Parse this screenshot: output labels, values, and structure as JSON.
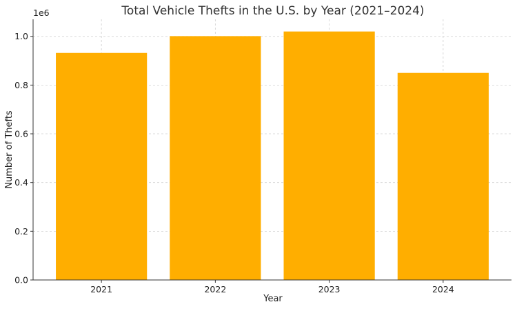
{
  "chart_data": {
    "type": "bar",
    "title": "Total Vehicle Thefts in the U.S. by Year (2021–2024)",
    "xlabel": "Year",
    "ylabel": "Number of Thefts",
    "categories": [
      "2021",
      "2022",
      "2023",
      "2024"
    ],
    "values": [
      932000,
      1001000,
      1020000,
      850000
    ],
    "ylim": [
      0,
      1070000
    ],
    "yticks": [
      0,
      200000,
      400000,
      600000,
      800000,
      1000000
    ],
    "ytick_labels": [
      "0.0",
      "0.2",
      "0.4",
      "0.6",
      "0.8",
      "1.0"
    ],
    "y_offset_label": "1e6",
    "bar_color": "#FFAE00",
    "grid": true
  }
}
